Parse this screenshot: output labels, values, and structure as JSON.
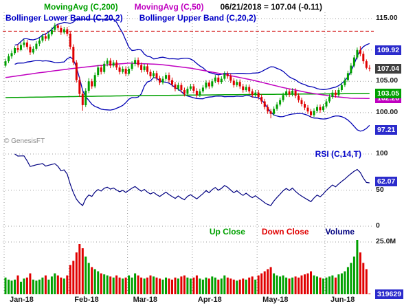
{
  "header": {
    "ma200": "MovingAvg (C,200)",
    "ma50": "MovingAvg (C,50)",
    "quote": "06/21/2018 = 107.04 (-0.11)",
    "bb_lower": "Bollinger Lower Band (C,20,2)",
    "bb_upper": "Bollinger Upper Band (C,20,2)"
  },
  "watermark": "© GenesisFT",
  "price_axis": {
    "ticks": [
      {
        "label": "115.00",
        "v": 115
      },
      {
        "label": "105.00",
        "v": 105
      },
      {
        "label": "100.00",
        "v": 100
      }
    ],
    "badges": [
      {
        "label": "109.92",
        "v": 109.92,
        "color": "badge_blue"
      },
      {
        "label": "107.04",
        "v": 107.04,
        "color": "badge_dark"
      },
      {
        "label": "102.26",
        "v": 102.26,
        "color": "ma50"
      },
      {
        "label": "103.05",
        "v": 103.05,
        "color": "ma200"
      },
      {
        "label": "97.21",
        "v": 97.21,
        "color": "badge_blue"
      }
    ]
  },
  "rsi_pane": {
    "label": "RSI (C,14,T)",
    "ticks": [
      {
        "label": "100",
        "v": 100
      },
      {
        "label": "50",
        "v": 50
      },
      {
        "label": "0",
        "v": 0
      }
    ],
    "badge": {
      "label": "62.07",
      "v": 62.07
    }
  },
  "volume_pane": {
    "legend_up": "Up Close",
    "legend_down": "Down Close",
    "legend_volume": "Volume",
    "tick": {
      "label": "25.0M",
      "v": 25
    },
    "badge": {
      "label": "319629"
    }
  },
  "x_axis": {
    "months": [
      "Jan-18",
      "Feb-18",
      "Mar-18",
      "Apr-18",
      "May-18",
      "Jun-18"
    ],
    "month_start_idx": [
      0,
      21,
      40,
      61,
      82,
      104
    ]
  },
  "colors": {
    "up": "#00A000",
    "down": "#E00000",
    "band": "#0000B4",
    "band_label": "#0000C8",
    "ma200": "#00A000",
    "ma50": "#C000C0",
    "rsi_line": "#000080",
    "badge_blue": "#2B2BCC",
    "badge_dark": "#404040",
    "grid": "#999999",
    "ref_red": "#D00000",
    "quote_text": "#111111"
  },
  "chart_data": [
    {
      "type": "candlestick",
      "symbol": "C",
      "title": "Price with MovingAvg(200), MovingAvg(50), Bollinger Bands (20,2)",
      "ylim": [
        94.5,
        116
      ],
      "yticks": [
        115,
        110,
        105,
        100
      ],
      "ref_line": 113.0,
      "last_close": 107.04,
      "last_change": -0.11,
      "series": [
        {
          "name": "OHLC",
          "candles": [
            [
              107.5,
              108.6,
              107.2,
              108.2
            ],
            [
              108.2,
              109.4,
              107.9,
              109.0
            ],
            [
              109.0,
              109.9,
              108.6,
              109.5
            ],
            [
              109.5,
              110.6,
              109.2,
              110.3
            ],
            [
              110.3,
              110.9,
              109.6,
              110.0
            ],
            [
              110.0,
              111.2,
              109.8,
              110.8
            ],
            [
              110.8,
              111.7,
              110.4,
              111.2
            ],
            [
              111.2,
              111.6,
              110.1,
              110.5
            ],
            [
              110.5,
              110.9,
              109.2,
              109.6
            ],
            [
              109.6,
              110.6,
              109.3,
              110.2
            ],
            [
              110.2,
              111.4,
              109.9,
              111.0
            ],
            [
              111.0,
              111.9,
              110.6,
              111.5
            ],
            [
              111.5,
              112.6,
              111.2,
              112.2
            ],
            [
              112.2,
              112.7,
              111.4,
              111.8
            ],
            [
              111.8,
              112.9,
              111.5,
              112.5
            ],
            [
              112.5,
              113.6,
              112.2,
              113.2
            ],
            [
              113.2,
              114.3,
              112.9,
              113.9
            ],
            [
              113.9,
              114.2,
              113.1,
              113.5
            ],
            [
              113.5,
              113.9,
              112.4,
              112.8
            ],
            [
              112.8,
              113.7,
              112.5,
              113.3
            ],
            [
              113.3,
              113.7,
              112.2,
              112.6
            ],
            [
              112.6,
              112.9,
              110.1,
              110.5
            ],
            [
              110.5,
              110.9,
              107.6,
              108.0
            ],
            [
              108.0,
              108.4,
              104.8,
              105.2
            ],
            [
              105.2,
              105.7,
              102.5,
              103.0
            ],
            [
              103.0,
              103.4,
              100.3,
              101.2
            ],
            [
              101.2,
              103.9,
              100.9,
              103.5
            ],
            [
              103.5,
              105.5,
              103.1,
              105.0
            ],
            [
              105.0,
              105.4,
              103.8,
              104.2
            ],
            [
              104.2,
              106.4,
              103.9,
              106.0
            ],
            [
              106.0,
              107.6,
              105.7,
              107.2
            ],
            [
              107.2,
              107.6,
              106.1,
              106.5
            ],
            [
              106.5,
              108.2,
              106.2,
              107.8
            ],
            [
              107.8,
              108.7,
              107.4,
              108.3
            ],
            [
              108.3,
              108.7,
              107.1,
              107.5
            ],
            [
              107.5,
              108.4,
              107.2,
              108.0
            ],
            [
              108.0,
              108.4,
              106.8,
              107.2
            ],
            [
              107.2,
              107.6,
              106.1,
              106.5
            ],
            [
              106.5,
              107.4,
              106.2,
              107.0
            ],
            [
              107.0,
              107.4,
              105.8,
              106.2
            ],
            [
              106.2,
              107.4,
              105.9,
              107.0
            ],
            [
              107.0,
              108.2,
              106.7,
              107.8
            ],
            [
              107.8,
              108.8,
              107.4,
              108.4
            ],
            [
              108.4,
              108.8,
              107.2,
              107.6
            ],
            [
              107.6,
              108.0,
              106.4,
              106.8
            ],
            [
              106.8,
              107.8,
              106.5,
              107.4
            ],
            [
              107.4,
              107.8,
              106.1,
              106.5
            ],
            [
              106.5,
              106.9,
              105.4,
              105.8
            ],
            [
              105.8,
              106.7,
              105.5,
              106.3
            ],
            [
              106.3,
              106.7,
              105.1,
              105.5
            ],
            [
              105.5,
              105.9,
              104.4,
              104.8
            ],
            [
              104.8,
              105.8,
              104.5,
              105.4
            ],
            [
              105.4,
              106.4,
              105.1,
              106.0
            ],
            [
              106.0,
              106.4,
              104.8,
              105.2
            ],
            [
              105.2,
              105.6,
              104.1,
              104.5
            ],
            [
              104.5,
              104.9,
              103.4,
              103.8
            ],
            [
              103.8,
              104.8,
              103.5,
              104.4
            ],
            [
              104.4,
              104.8,
              103.2,
              103.6
            ],
            [
              103.6,
              104.0,
              102.6,
              103.0
            ],
            [
              103.0,
              104.2,
              102.7,
              103.8
            ],
            [
              103.8,
              104.6,
              103.5,
              104.2
            ],
            [
              104.2,
              104.6,
              103.1,
              103.5
            ],
            [
              103.5,
              103.9,
              102.4,
              102.8
            ],
            [
              102.8,
              103.8,
              102.5,
              103.4
            ],
            [
              103.4,
              104.4,
              103.1,
              104.0
            ],
            [
              104.0,
              105.2,
              103.7,
              104.8
            ],
            [
              104.8,
              105.2,
              103.8,
              104.2
            ],
            [
              104.2,
              105.4,
              103.9,
              105.0
            ],
            [
              105.0,
              106.0,
              104.7,
              105.6
            ],
            [
              105.6,
              106.0,
              104.5,
              104.9
            ],
            [
              104.9,
              105.8,
              104.6,
              105.4
            ],
            [
              105.4,
              106.6,
              105.1,
              106.2
            ],
            [
              106.2,
              106.6,
              105.4,
              105.8
            ],
            [
              105.8,
              106.2,
              104.7,
              105.1
            ],
            [
              105.1,
              105.5,
              104.0,
              104.4
            ],
            [
              104.4,
              105.3,
              104.1,
              104.9
            ],
            [
              104.9,
              105.3,
              103.8,
              104.2
            ],
            [
              104.2,
              104.6,
              103.2,
              103.6
            ],
            [
              103.6,
              104.5,
              103.3,
              104.1
            ],
            [
              104.1,
              104.5,
              103.0,
              103.4
            ],
            [
              103.4,
              103.8,
              102.4,
              102.8
            ],
            [
              102.8,
              103.6,
              102.5,
              103.2
            ],
            [
              103.2,
              103.6,
              102.1,
              102.5
            ],
            [
              102.5,
              102.9,
              101.4,
              101.8
            ],
            [
              101.8,
              102.2,
              100.5,
              100.9
            ],
            [
              100.9,
              101.3,
              99.8,
              100.2
            ],
            [
              100.2,
              100.6,
              99.1,
              99.8
            ],
            [
              99.8,
              101.0,
              99.5,
              100.6
            ],
            [
              100.6,
              101.7,
              100.3,
              101.3
            ],
            [
              101.3,
              102.4,
              101.0,
              102.0
            ],
            [
              102.0,
              103.2,
              101.7,
              102.8
            ],
            [
              102.8,
              103.8,
              102.5,
              103.4
            ],
            [
              103.4,
              103.8,
              102.5,
              102.9
            ],
            [
              102.9,
              103.9,
              102.6,
              103.5
            ],
            [
              103.5,
              103.9,
              102.3,
              102.7
            ],
            [
              102.7,
              103.1,
              101.6,
              102.0
            ],
            [
              102.0,
              102.4,
              101.0,
              101.4
            ],
            [
              101.4,
              101.8,
              100.4,
              100.8
            ],
            [
              100.8,
              101.2,
              99.8,
              100.2
            ],
            [
              100.2,
              100.6,
              99.2,
              99.6
            ],
            [
              99.6,
              100.7,
              99.3,
              100.3
            ],
            [
              100.3,
              101.3,
              100.0,
              100.9
            ],
            [
              100.9,
              101.3,
              100.0,
              100.4
            ],
            [
              100.4,
              101.4,
              100.1,
              101.0
            ],
            [
              101.0,
              102.2,
              100.7,
              101.8
            ],
            [
              101.8,
              102.9,
              101.5,
              102.5
            ],
            [
              102.5,
              103.6,
              102.2,
              103.2
            ],
            [
              103.2,
              103.6,
              102.4,
              102.8
            ],
            [
              102.8,
              104.0,
              102.5,
              103.6
            ],
            [
              103.6,
              104.8,
              103.3,
              104.4
            ],
            [
              104.4,
              105.6,
              104.1,
              105.2
            ],
            [
              105.2,
              106.7,
              104.9,
              106.3
            ],
            [
              106.3,
              107.9,
              106.0,
              107.5
            ],
            [
              107.5,
              109.2,
              107.2,
              108.8
            ],
            [
              108.8,
              110.4,
              108.5,
              110.0
            ],
            [
              110.0,
              110.6,
              109.0,
              109.4
            ],
            [
              109.4,
              109.8,
              107.8,
              108.2
            ],
            [
              108.2,
              108.5,
              106.9,
              107.15
            ],
            [
              107.15,
              107.6,
              106.6,
              107.04
            ]
          ]
        },
        {
          "name": "MovingAvg (C,200)",
          "last": 103.05,
          "points": [
            [
              0,
              102.4
            ],
            [
              40,
              102.7
            ],
            [
              80,
              102.9
            ],
            [
              118,
              103.05
            ]
          ]
        },
        {
          "name": "MovingAvg (C,50)",
          "last": 102.26,
          "points": [
            [
              0,
              105.6
            ],
            [
              10,
              106.3
            ],
            [
              21,
              107.0
            ],
            [
              30,
              107.5
            ],
            [
              40,
              107.9
            ],
            [
              50,
              107.7
            ],
            [
              60,
              107.1
            ],
            [
              70,
              106.2
            ],
            [
              80,
              105.2
            ],
            [
              90,
              104.0
            ],
            [
              98,
              103.2
            ],
            [
              106,
              102.6
            ],
            [
              112,
              102.3
            ],
            [
              118,
              102.26
            ]
          ]
        },
        {
          "name": "Bollinger Bands (C,20,2)",
          "window": 20,
          "mult": 2,
          "upper_last": 109.92,
          "lower_last": 97.21
        }
      ]
    },
    {
      "type": "line",
      "name": "RSI (C,14,T)",
      "formula": "RSI(close,14)",
      "ylim": [
        0,
        100
      ],
      "yticks": [
        100,
        50,
        0
      ],
      "last": 62.07
    },
    {
      "type": "bar",
      "name": "Volume",
      "unit": "millions of shares",
      "ylim": [
        0,
        27
      ],
      "yticks": [
        25
      ],
      "last_raw": 319629,
      "values": [
        8,
        7,
        6.5,
        7,
        9,
        6,
        7.5,
        8,
        10,
        7,
        6.5,
        7,
        8,
        9,
        7,
        8.5,
        10,
        9,
        8,
        7.5,
        9,
        14,
        16,
        20,
        24,
        22,
        18,
        15,
        13,
        12,
        11,
        10,
        9.5,
        9,
        8.5,
        8,
        9,
        8,
        7.5,
        8,
        9,
        8,
        10,
        9,
        8,
        7.5,
        8,
        9,
        8.5,
        8,
        7.5,
        7,
        8,
        7.5,
        7,
        8,
        7.5,
        8.5,
        9,
        8,
        7.5,
        8,
        9,
        7.5,
        7,
        8,
        7.5,
        8.5,
        8,
        7,
        7.5,
        9,
        8,
        7.5,
        7,
        6.5,
        7,
        7.5,
        7,
        8,
        8.5,
        7,
        9,
        10,
        11,
        12,
        13,
        10,
        9,
        8.5,
        9,
        8,
        7.5,
        8,
        8.5,
        8,
        9,
        9.5,
        10,
        11,
        9,
        8.5,
        8,
        7.5,
        8,
        8.5,
        9,
        8,
        9.5,
        10,
        11,
        13,
        15,
        18,
        26,
        20,
        15,
        12,
        0.32
      ]
    }
  ]
}
